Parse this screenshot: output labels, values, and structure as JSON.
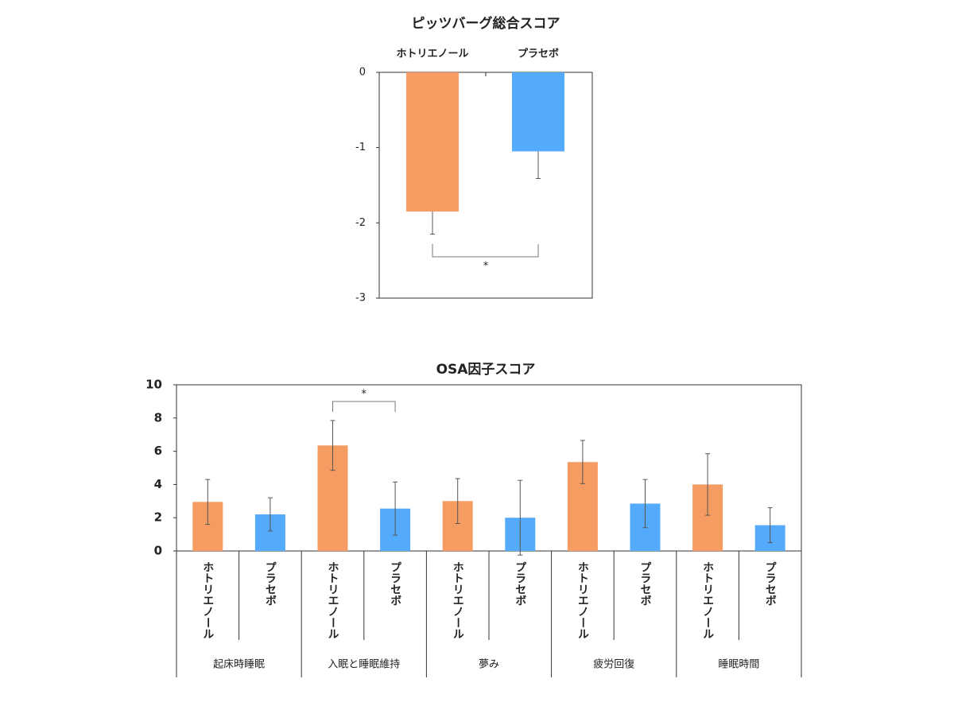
{
  "chart_data": [
    {
      "type": "bar",
      "title": "ピッツバーグ総合スコア",
      "categories": [
        "ホトリエノール",
        "プラセボ"
      ],
      "series": [
        {
          "values": [
            -1.85,
            -1.05
          ],
          "errors": [
            0.3,
            0.36
          ],
          "colors": [
            "#f49c62",
            "#55abfb"
          ]
        }
      ],
      "ylim": [
        -3,
        0
      ],
      "yticks": [
        -3,
        -2,
        -1,
        0
      ],
      "annotations": [
        {
          "text": "*"
        }
      ]
    },
    {
      "type": "grouped-bar",
      "title": "OSA因子スコア",
      "categories": [
        "起床時睡眠",
        "入眠と睡眠維持",
        "夢み",
        "疲労回復",
        "睡眠時間"
      ],
      "series": [
        {
          "name": "ホトリエノール",
          "color": "#f49c62",
          "values": [
            2.95,
            6.35,
            3.0,
            5.35,
            4.0
          ],
          "errors": [
            1.35,
            1.5,
            1.35,
            1.3,
            1.85
          ]
        },
        {
          "name": "プラセボ",
          "color": "#55abfb",
          "values": [
            2.2,
            2.55,
            2.0,
            2.85,
            1.55
          ],
          "errors": [
            1.0,
            1.6,
            2.25,
            1.45,
            1.05
          ]
        }
      ],
      "ylim": [
        0,
        10
      ],
      "yticks": [
        0,
        2,
        4,
        6,
        8,
        10
      ],
      "annotations": [
        {
          "text": "*"
        }
      ]
    }
  ]
}
